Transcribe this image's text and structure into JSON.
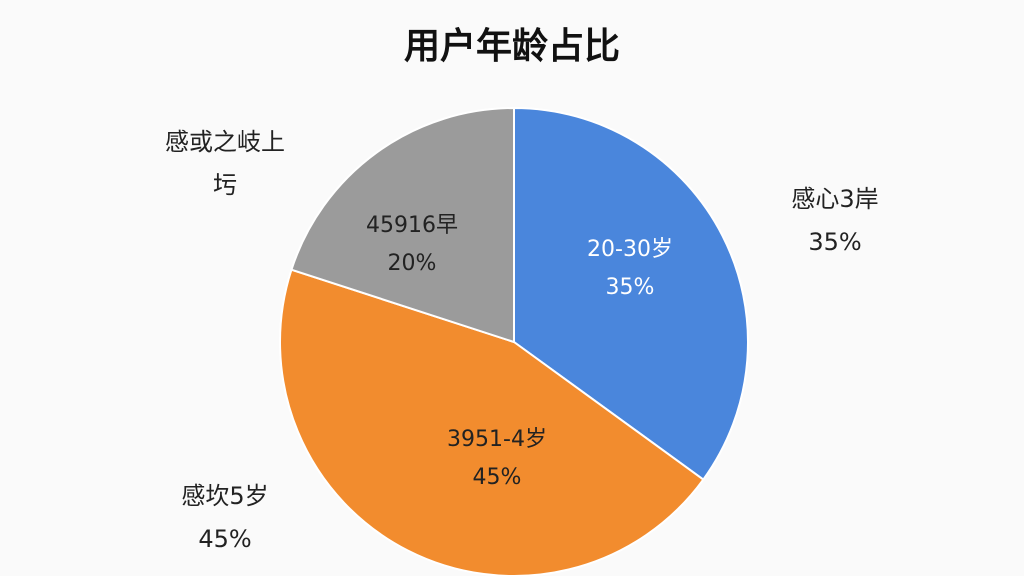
{
  "chart_data": {
    "type": "pie",
    "title": "用户年龄占比",
    "categories": [
      "20-30岁",
      "3951-4岁",
      "45916早"
    ],
    "values": [
      35,
      45,
      20
    ],
    "value_labels": [
      "35%",
      "45%",
      "20%"
    ],
    "colors": [
      "#4a86dc",
      "#f28c2e",
      "#9b9b9b"
    ],
    "outer_labels": [
      [
        "感心3岸",
        "35%"
      ],
      [
        "感坎5岁",
        "45%"
      ],
      [
        "感或之岐上",
        "圬"
      ]
    ]
  }
}
